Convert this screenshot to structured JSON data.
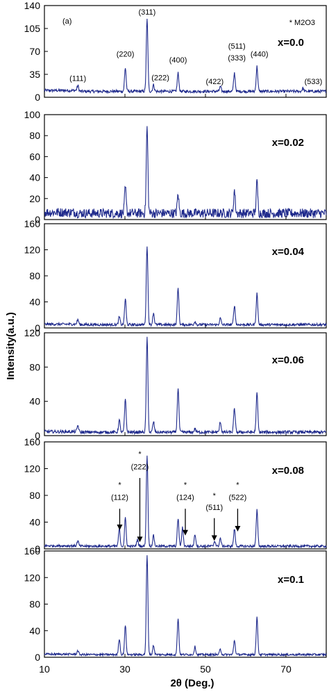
{
  "chart_data": {
    "type": "line",
    "panel_tag": "(a)",
    "legend_note": "* M2O3",
    "xlabel": "2θ (Deg.)",
    "ylabel": "Intensity(a.u.)",
    "xlim": [
      10,
      80
    ],
    "x_ticks": [
      10,
      30,
      50,
      70
    ],
    "colors": {
      "series": "#1f2a8c",
      "axis": "#000000"
    },
    "panels": [
      {
        "label": "x=0.0",
        "ylim": [
          0,
          140
        ],
        "y_ticks": [
          0,
          35,
          70,
          105,
          140
        ],
        "baseline": 9,
        "noise": 2.2,
        "peaks": [
          {
            "x": 18.3,
            "h": 9
          },
          {
            "x": 30.1,
            "h": 36
          },
          {
            "x": 35.5,
            "h": 110
          },
          {
            "x": 37.1,
            "h": 10
          },
          {
            "x": 43.2,
            "h": 28
          },
          {
            "x": 53.7,
            "h": 7
          },
          {
            "x": 57.2,
            "h": 28
          },
          {
            "x": 62.8,
            "h": 38
          },
          {
            "x": 74.2,
            "h": 5
          }
        ],
        "annotations": [
          {
            "text": "(111)",
            "x": 18.3,
            "y": 25
          },
          {
            "text": "(220)",
            "x": 30.1,
            "y": 62
          },
          {
            "text": "(311)",
            "x": 35.5,
            "y": 126
          },
          {
            "text": "(222)",
            "x": 38.8,
            "y": 26
          },
          {
            "text": "(400)",
            "x": 43.2,
            "y": 53
          },
          {
            "text": "(422)",
            "x": 52.3,
            "y": 20
          },
          {
            "text": "(511)",
            "x": 57.8,
            "y": 74
          },
          {
            "text": "(333)",
            "x": 57.8,
            "y": 56
          },
          {
            "text": "(440)",
            "x": 63.4,
            "y": 62
          },
          {
            "text": "(533)",
            "x": 76.8,
            "y": 20
          }
        ]
      },
      {
        "label": "x=0.02",
        "ylim": [
          0,
          100
        ],
        "y_ticks": [
          0,
          20,
          40,
          60,
          80,
          100
        ],
        "baseline": 6,
        "noise": 4.5,
        "peaks": [
          {
            "x": 30.1,
            "h": 24
          },
          {
            "x": 35.5,
            "h": 82
          },
          {
            "x": 43.2,
            "h": 18
          },
          {
            "x": 57.2,
            "h": 22
          },
          {
            "x": 62.8,
            "h": 30
          }
        ],
        "annotations": []
      },
      {
        "label": "x=0.04",
        "ylim": [
          0,
          160
        ],
        "y_ticks": [
          0,
          40,
          80,
          120,
          160
        ],
        "baseline": 5,
        "noise": 2.0,
        "peaks": [
          {
            "x": 18.3,
            "h": 8
          },
          {
            "x": 28.6,
            "h": 12
          },
          {
            "x": 30.1,
            "h": 40
          },
          {
            "x": 35.5,
            "h": 122
          },
          {
            "x": 37.1,
            "h": 18
          },
          {
            "x": 43.2,
            "h": 57
          },
          {
            "x": 47.4,
            "h": 5
          },
          {
            "x": 53.7,
            "h": 10
          },
          {
            "x": 57.2,
            "h": 30
          },
          {
            "x": 62.8,
            "h": 48
          }
        ],
        "annotations": []
      },
      {
        "label": "x=0.06",
        "ylim": [
          0,
          120
        ],
        "y_ticks": [
          0,
          40,
          80,
          120
        ],
        "baseline": 4,
        "noise": 1.8,
        "peaks": [
          {
            "x": 18.3,
            "h": 8
          },
          {
            "x": 28.6,
            "h": 14
          },
          {
            "x": 30.1,
            "h": 38
          },
          {
            "x": 35.5,
            "h": 110
          },
          {
            "x": 37.1,
            "h": 12
          },
          {
            "x": 43.2,
            "h": 52
          },
          {
            "x": 47.4,
            "h": 4
          },
          {
            "x": 53.7,
            "h": 12
          },
          {
            "x": 57.2,
            "h": 28
          },
          {
            "x": 62.8,
            "h": 46
          }
        ],
        "annotations": []
      },
      {
        "label": "x=0.08",
        "ylim": [
          0,
          160
        ],
        "y_ticks": [
          0,
          40,
          80,
          120,
          160
        ],
        "baseline": 4,
        "noise": 1.8,
        "peaks": [
          {
            "x": 18.3,
            "h": 8
          },
          {
            "x": 28.6,
            "h": 26
          },
          {
            "x": 30.1,
            "h": 42
          },
          {
            "x": 33.1,
            "h": 10
          },
          {
            "x": 35.5,
            "h": 136
          },
          {
            "x": 37.1,
            "h": 16
          },
          {
            "x": 43.2,
            "h": 42
          },
          {
            "x": 44.3,
            "h": 28
          },
          {
            "x": 47.4,
            "h": 18
          },
          {
            "x": 52.3,
            "h": 8
          },
          {
            "x": 53.7,
            "h": 12
          },
          {
            "x": 57.2,
            "h": 26
          },
          {
            "x": 62.8,
            "h": 54
          }
        ],
        "annotations": [
          {
            "text": "*",
            "x": 28.7,
            "y": 92
          },
          {
            "text": "(112)",
            "x": 28.7,
            "y": 73
          },
          {
            "text": "*",
            "x": 33.7,
            "y": 138
          },
          {
            "text": "(222)",
            "x": 33.7,
            "y": 119
          },
          {
            "text": "*",
            "x": 45.0,
            "y": 92
          },
          {
            "text": "(124)",
            "x": 45.0,
            "y": 73
          },
          {
            "text": "*",
            "x": 52.2,
            "y": 76
          },
          {
            "text": "(511)",
            "x": 52.2,
            "y": 58
          },
          {
            "text": "*",
            "x": 58.0,
            "y": 92
          },
          {
            "text": "(522)",
            "x": 58.0,
            "y": 73
          }
        ],
        "arrows": [
          {
            "x": 28.7,
            "from": 60,
            "to": 28
          },
          {
            "x": 33.7,
            "from": 106,
            "to": 10
          },
          {
            "x": 45.0,
            "from": 60,
            "to": 20
          },
          {
            "x": 52.2,
            "from": 46,
            "to": 12
          },
          {
            "x": 58.0,
            "from": 60,
            "to": 26
          }
        ]
      },
      {
        "label": "x=0.1",
        "ylim": [
          0,
          160
        ],
        "y_ticks": [
          0,
          40,
          80,
          120,
          160
        ],
        "baseline": 4,
        "noise": 1.6,
        "peaks": [
          {
            "x": 18.3,
            "h": 6
          },
          {
            "x": 28.6,
            "h": 24
          },
          {
            "x": 30.1,
            "h": 44
          },
          {
            "x": 35.5,
            "h": 150
          },
          {
            "x": 37.1,
            "h": 14
          },
          {
            "x": 43.2,
            "h": 55
          },
          {
            "x": 47.4,
            "h": 12
          },
          {
            "x": 53.7,
            "h": 8
          },
          {
            "x": 57.2,
            "h": 22
          },
          {
            "x": 62.8,
            "h": 56
          }
        ],
        "annotations": []
      }
    ]
  }
}
